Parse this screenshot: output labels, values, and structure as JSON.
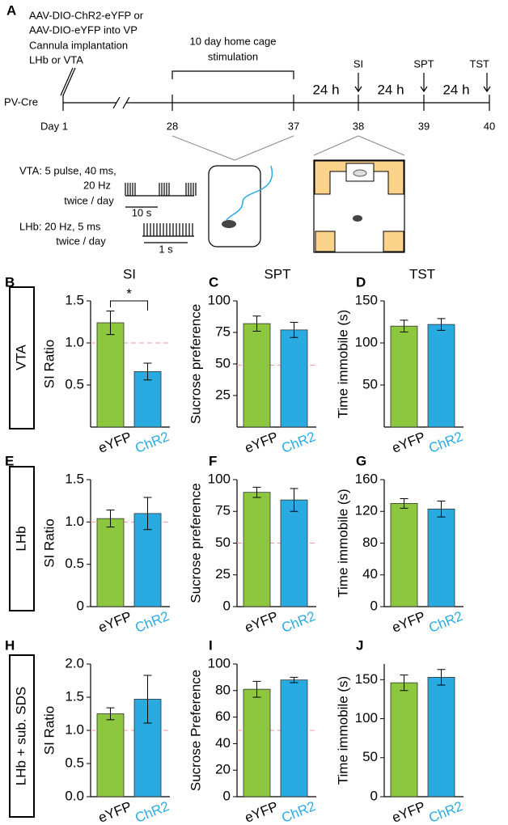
{
  "schematic": {
    "panel": "A",
    "injection": [
      "AAV-DIO-ChR2-eYFP or",
      "AAV-DIO-eYFP into VP",
      "Cannula implantation",
      "LHb or VTA"
    ],
    "stimulation": [
      "10 day home cage",
      "stimulation"
    ],
    "strain": "PV-Cre",
    "intervals": [
      "24 h",
      "24 h",
      "24 h"
    ],
    "tests": [
      "SI",
      "SPT",
      "TST"
    ],
    "days": [
      "Day 1",
      "28",
      "37",
      "38",
      "39",
      "40"
    ],
    "vta_protocol": [
      "VTA: 5 pulse, 40 ms,",
      "20 Hz",
      "twice / day"
    ],
    "vta_scale": "10 s",
    "lhb_protocol": [
      "LHb: 20 Hz, 5 ms",
      "twice / day"
    ],
    "lhb_scale": "1 s"
  },
  "rows": [
    "VTA",
    "LHb",
    "LHb + sub. SDS"
  ],
  "chart_data": [
    {
      "type": "bar",
      "panel": "B",
      "title": "SI",
      "ylabel": "SI Ratio",
      "categories": [
        "eYFP",
        "ChR2"
      ],
      "category_colors": [
        "#000000",
        "#29abe2"
      ],
      "colors": [
        "#8dc63f",
        "#29abe2"
      ],
      "values": [
        1.24,
        0.66
      ],
      "errors": [
        0.14,
        0.1
      ],
      "reference_line": 1,
      "significance": "*",
      "ylim": [
        0,
        1.5
      ],
      "yticks": [
        {
          "value": 0.5,
          "label": "0.5"
        },
        {
          "value": 1,
          "label": "1.0"
        },
        {
          "value": 1.5,
          "label": "1.5"
        }
      ]
    },
    {
      "type": "bar",
      "panel": "C",
      "title": "SPT",
      "ylabel": "Sucrose preference",
      "categories": [
        "eYFP",
        "ChR2"
      ],
      "category_colors": [
        "#000000",
        "#29abe2"
      ],
      "colors": [
        "#8dc63f",
        "#29abe2"
      ],
      "values": [
        82,
        77
      ],
      "errors": [
        6,
        6
      ],
      "reference_line": 49,
      "ylim": [
        0,
        100
      ],
      "yticks": [
        25,
        50,
        75,
        100
      ]
    },
    {
      "type": "bar",
      "panel": "D",
      "title": "TST",
      "ylabel": "Time immobile (s)",
      "categories": [
        "eYFP",
        "ChR2"
      ],
      "category_colors": [
        "#000000",
        "#29abe2"
      ],
      "colors": [
        "#8dc63f",
        "#29abe2"
      ],
      "values": [
        120,
        122
      ],
      "errors": [
        7,
        7
      ],
      "ylim": [
        0,
        150
      ],
      "yticks": [
        50,
        100,
        150
      ]
    },
    {
      "type": "bar",
      "panel": "E",
      "ylabel": "SI Ratio",
      "categories": [
        "eYFP",
        "ChR2"
      ],
      "category_colors": [
        "#000000",
        "#29abe2"
      ],
      "colors": [
        "#8dc63f",
        "#29abe2"
      ],
      "values": [
        1.04,
        1.1
      ],
      "errors": [
        0.1,
        0.19
      ],
      "reference_line": 1,
      "ylim": [
        0,
        1.5
      ],
      "yticks": [
        0,
        0.5,
        {
          "value": 1,
          "label": "1.0"
        },
        1.5
      ]
    },
    {
      "type": "bar",
      "panel": "F",
      "ylabel": "Sucrose preference",
      "categories": [
        "eYFP",
        "ChR2"
      ],
      "category_colors": [
        "#000000",
        "#29abe2"
      ],
      "colors": [
        "#8dc63f",
        "#29abe2"
      ],
      "values": [
        90,
        84
      ],
      "errors": [
        4,
        9
      ],
      "reference_line": 50,
      "ylim": [
        0,
        100
      ],
      "yticks": [
        0,
        25,
        50,
        75,
        100
      ]
    },
    {
      "type": "bar",
      "panel": "G",
      "ylabel": "Time immobile (s)",
      "categories": [
        "eYFP",
        "ChR2"
      ],
      "category_colors": [
        "#000000",
        "#29abe2"
      ],
      "colors": [
        "#8dc63f",
        "#29abe2"
      ],
      "values": [
        130,
        123
      ],
      "errors": [
        6,
        10
      ],
      "ylim": [
        0,
        160
      ],
      "yticks": [
        0,
        40,
        80,
        120,
        160
      ]
    },
    {
      "type": "bar",
      "panel": "H",
      "ylabel": "SI Ratio",
      "categories": [
        "eYFP",
        "ChR2"
      ],
      "category_colors": [
        "#000000",
        "#29abe2"
      ],
      "colors": [
        "#8dc63f",
        "#29abe2"
      ],
      "values": [
        1.25,
        1.47
      ],
      "errors": [
        0.09,
        0.36
      ],
      "reference_line": 1,
      "ylim": [
        0,
        2
      ],
      "yticks": [
        {
          "value": 0,
          "label": "0.0"
        },
        0.5,
        {
          "value": 1,
          "label": "1.0"
        },
        1.5,
        {
          "value": 2,
          "label": "2.0"
        }
      ]
    },
    {
      "type": "bar",
      "panel": "I",
      "ylabel": "Sucrose Preference",
      "categories": [
        "eYFP",
        "ChR2"
      ],
      "category_colors": [
        "#000000",
        "#29abe2"
      ],
      "colors": [
        "#8dc63f",
        "#29abe2"
      ],
      "values": [
        81,
        88
      ],
      "errors": [
        6,
        2
      ],
      "reference_line": 50,
      "ylim": [
        0,
        100
      ],
      "yticks": [
        0,
        20,
        40,
        60,
        80,
        100
      ]
    },
    {
      "type": "bar",
      "panel": "J",
      "ylabel": "Time immobile (s)",
      "categories": [
        "eYFP",
        "ChR2"
      ],
      "category_colors": [
        "#000000",
        "#29abe2"
      ],
      "colors": [
        "#8dc63f",
        "#29abe2"
      ],
      "values": [
        146,
        153
      ],
      "errors": [
        10,
        10
      ],
      "ylim": [
        0,
        170
      ],
      "yticks": [
        0,
        50,
        100,
        150
      ]
    }
  ]
}
